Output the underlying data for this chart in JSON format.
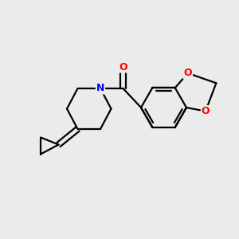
{
  "background_color": "#ebebeb",
  "bond_color": "#000000",
  "N_color": "#0000ff",
  "O_color": "#ff0000",
  "bond_width": 1.6,
  "figsize": [
    3.0,
    3.0
  ],
  "dpi": 100,
  "xlim": [
    0,
    10
  ],
  "ylim": [
    0,
    10
  ]
}
